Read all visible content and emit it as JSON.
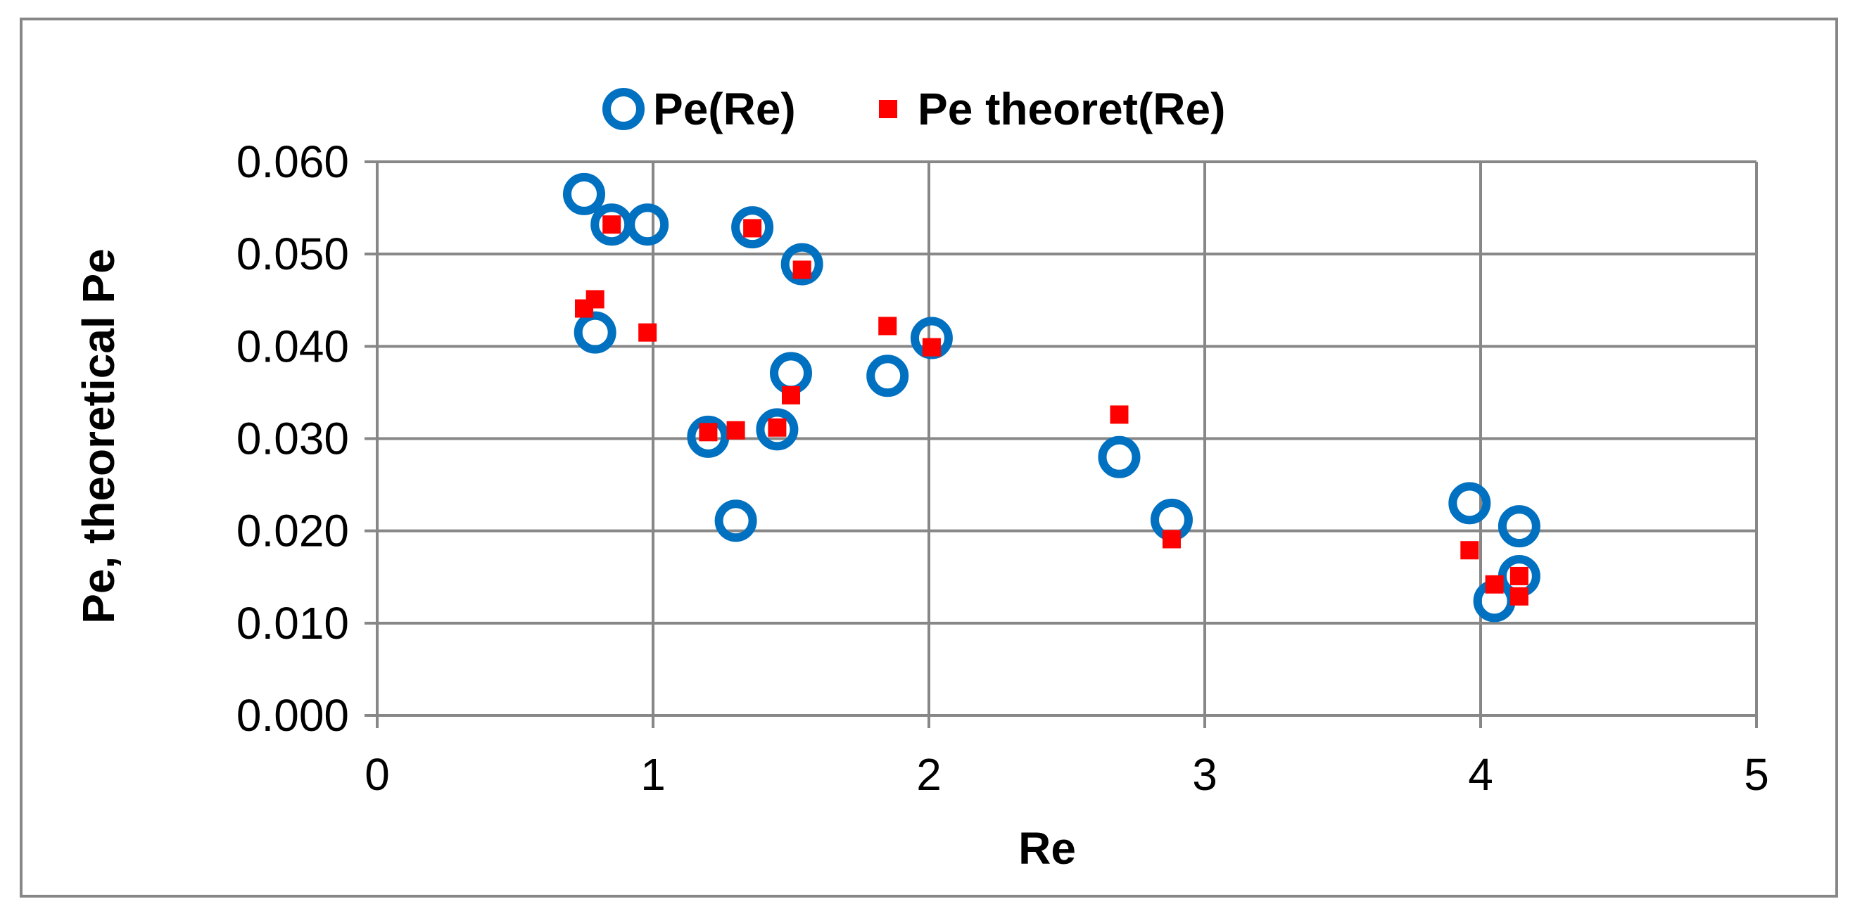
{
  "chart_data": {
    "type": "scatter",
    "title": "",
    "xlabel": "Re",
    "ylabel": "Pe, theoretical Pe",
    "xlim": [
      0,
      5
    ],
    "ylim": [
      0,
      0.06
    ],
    "x_ticks": [
      "0",
      "1",
      "2",
      "3",
      "4",
      "5"
    ],
    "y_ticks": [
      "0.000",
      "0.010",
      "0.020",
      "0.030",
      "0.040",
      "0.050",
      "0.060"
    ],
    "grid": true,
    "legend_position": "top-center",
    "series": [
      {
        "name": "Pe(Re)",
        "marker": "hollow-circle",
        "color": "#0070C0",
        "points": [
          [
            0.75,
            0.0565
          ],
          [
            0.79,
            0.0415
          ],
          [
            0.85,
            0.0532
          ],
          [
            0.98,
            0.0532
          ],
          [
            1.2,
            0.0302
          ],
          [
            1.3,
            0.0211
          ],
          [
            1.36,
            0.0529
          ],
          [
            1.45,
            0.031
          ],
          [
            1.5,
            0.0371
          ],
          [
            1.54,
            0.0489
          ],
          [
            1.85,
            0.0368
          ],
          [
            2.01,
            0.0409
          ],
          [
            2.69,
            0.028
          ],
          [
            2.88,
            0.0212
          ],
          [
            3.96,
            0.023
          ],
          [
            4.05,
            0.0124
          ],
          [
            4.14,
            0.0205
          ],
          [
            4.14,
            0.0151
          ]
        ]
      },
      {
        "name": "Pe theoret(Re)",
        "marker": "square",
        "color": "#FF0000",
        "points": [
          [
            0.75,
            0.0441
          ],
          [
            0.79,
            0.0451
          ],
          [
            0.85,
            0.0532
          ],
          [
            0.98,
            0.0415
          ],
          [
            1.2,
            0.0307
          ],
          [
            1.3,
            0.0309
          ],
          [
            1.36,
            0.0528
          ],
          [
            1.45,
            0.0312
          ],
          [
            1.5,
            0.0347
          ],
          [
            1.54,
            0.0483
          ],
          [
            1.85,
            0.0422
          ],
          [
            2.01,
            0.0399
          ],
          [
            2.69,
            0.0326
          ],
          [
            2.88,
            0.0191
          ],
          [
            3.96,
            0.0179
          ],
          [
            4.05,
            0.0142
          ],
          [
            4.14,
            0.0129
          ],
          [
            4.14,
            0.0151
          ]
        ]
      }
    ]
  }
}
